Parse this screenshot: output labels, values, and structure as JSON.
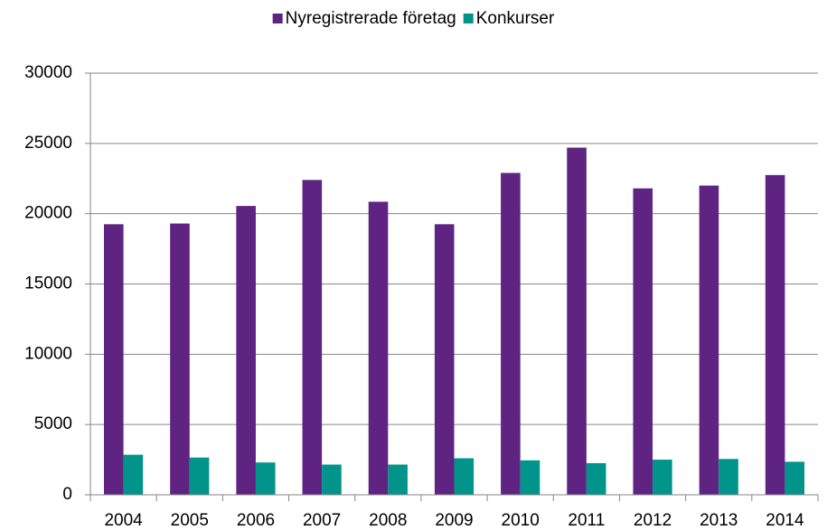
{
  "chart_data": {
    "type": "bar",
    "categories": [
      "2004",
      "2005",
      "2006",
      "2007",
      "2008",
      "2009",
      "2010",
      "2011",
      "2012",
      "2013",
      "2014"
    ],
    "series": [
      {
        "name": "Nyregistrerade företag",
        "color": "#5f2481",
        "values": [
          19250,
          19300,
          20550,
          22400,
          20850,
          19250,
          22900,
          24700,
          21800,
          22000,
          22750
        ]
      },
      {
        "name": "Konkurser",
        "color": "#00948b",
        "values": [
          2850,
          2650,
          2300,
          2150,
          2150,
          2600,
          2450,
          2250,
          2500,
          2550,
          2350
        ]
      }
    ],
    "ylim": [
      0,
      30000
    ],
    "yticks": [
      0,
      5000,
      10000,
      15000,
      20000,
      25000,
      30000
    ],
    "grid": true,
    "legend": "top"
  }
}
